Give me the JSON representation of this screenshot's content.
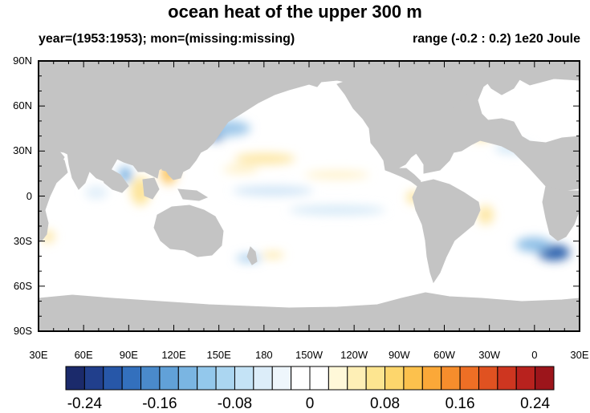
{
  "title": "ocean heat of the upper 300 m",
  "subtitle_left": "year=(1953:1953); mon=(missing:missing)",
  "subtitle_right": "range (-0.2 : 0.2) 1e20 Joule",
  "lat_labels": [
    "90N",
    "60N",
    "30N",
    "0",
    "30S",
    "60S",
    "90S"
  ],
  "lon_labels": [
    "30E",
    "60E",
    "90E",
    "120E",
    "150E",
    "180",
    "150W",
    "120W",
    "90W",
    "60W",
    "30W",
    "0",
    "30E"
  ],
  "colorbar": {
    "labels": [
      "-0.24",
      "-0.16",
      "-0.08",
      "0",
      "0.08",
      "0.16",
      "0.24"
    ],
    "colors": [
      "#1b2a6b",
      "#213f8c",
      "#2757a8",
      "#3370bd",
      "#4a8acb",
      "#61a1d8",
      "#7ab5e2",
      "#93c8ec",
      "#abd6f1",
      "#c4e3f6",
      "#dcedf9",
      "#eef6fc",
      "#ffffff",
      "#ffffff",
      "#fff8d9",
      "#feefb6",
      "#fde590",
      "#fdd66c",
      "#fcc14d",
      "#fba838",
      "#f68d2c",
      "#ee6f25",
      "#e05221",
      "#ce3620",
      "#b8221e",
      "#9c151b"
    ]
  },
  "colors": {
    "land": "#c4c4c4",
    "ocean": "#ffffff",
    "frame": "#000000"
  }
}
